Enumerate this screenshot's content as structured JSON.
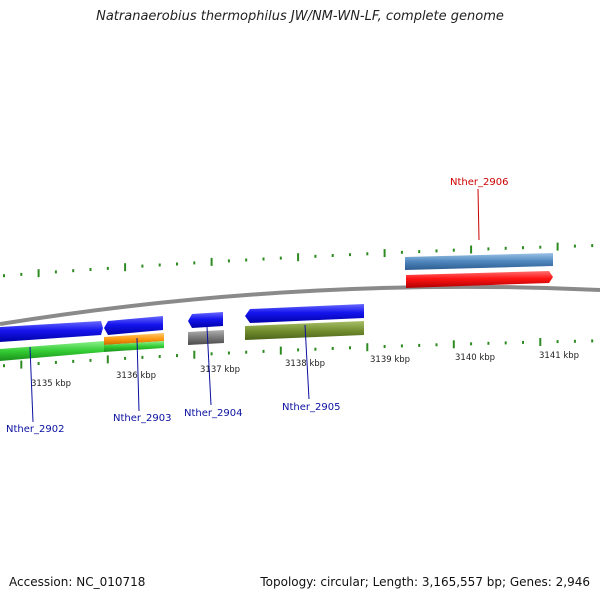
{
  "title": "Natranaerobius thermophilus JW/NM-WN-LF, complete genome",
  "footer": {
    "accession": "Accession: NC_010718",
    "stats": "Topology: circular; Length: 3,165,557 bp; Genes: 2,946"
  },
  "colors": {
    "backbone": "#8a8a8a",
    "ticks": "#2e8b22",
    "forward_label": "#cc0000",
    "reverse_label": "#0a10a0"
  },
  "ticks": [
    {
      "label": "3135 kbp"
    },
    {
      "label": "3136 kbp"
    },
    {
      "label": "3137 kbp"
    },
    {
      "label": "3138 kbp"
    },
    {
      "label": "3139 kbp"
    },
    {
      "label": "3140 kbp"
    },
    {
      "label": "3141 kbp"
    }
  ],
  "genes": [
    {
      "name": "Nther_2902",
      "strand": "reverse",
      "color": "#1010e0"
    },
    {
      "name": "Nther_2903",
      "strand": "reverse",
      "color": "#1010e0"
    },
    {
      "name": "Nther_2904",
      "strand": "reverse",
      "color": "#1010e0"
    },
    {
      "name": "Nther_2905",
      "strand": "reverse",
      "color": "#1010e0"
    },
    {
      "name": "Nther_2906",
      "strand": "forward",
      "color": "#ee1111"
    }
  ]
}
